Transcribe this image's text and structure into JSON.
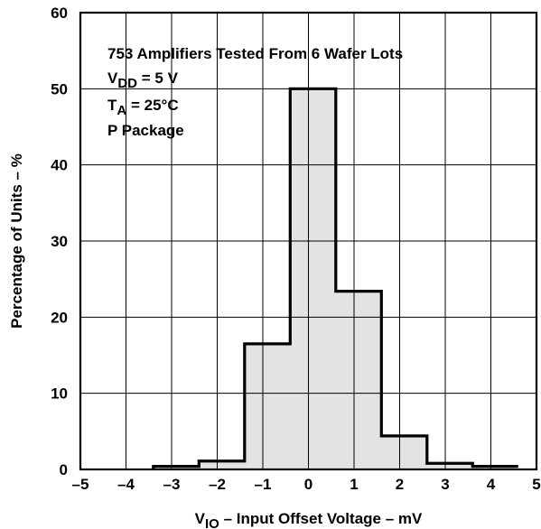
{
  "chart_data": {
    "type": "histogram",
    "title": "",
    "xlabel": {
      "main": "V",
      "sub": "IO",
      "rest": " – Input Offset Voltage – mV"
    },
    "ylabel": "Percentage of Units – %",
    "xlim": [
      -5,
      5
    ],
    "ylim": [
      0,
      60
    ],
    "x_ticks": [
      -5,
      -4,
      -3,
      -2,
      -1,
      0,
      1,
      2,
      3,
      4,
      5
    ],
    "x_tick_labels": [
      "–5",
      "–4",
      "–3",
      "–2",
      "–1",
      "0",
      "1",
      "2",
      "3",
      "4",
      "5"
    ],
    "y_ticks": [
      0,
      10,
      20,
      30,
      40,
      50,
      60
    ],
    "y_tick_labels": [
      "0",
      "10",
      "20",
      "30",
      "40",
      "50",
      "60"
    ],
    "grid": true,
    "bins": [
      {
        "x0": -3.4,
        "x1": -2.4,
        "value": 0.4
      },
      {
        "x0": -2.4,
        "x1": -1.4,
        "value": 1.1
      },
      {
        "x0": -1.4,
        "x1": -0.4,
        "value": 16.5
      },
      {
        "x0": -0.4,
        "x1": 0.6,
        "value": 50.0
      },
      {
        "x0": 0.6,
        "x1": 1.6,
        "value": 23.4
      },
      {
        "x0": 1.6,
        "x1": 2.6,
        "value": 4.4
      },
      {
        "x0": 2.6,
        "x1": 3.6,
        "value": 0.8
      },
      {
        "x0": 3.6,
        "x1": 4.6,
        "value": 0.4
      }
    ],
    "fill_color": "#e3e3e3",
    "line_color": "#000000",
    "annotations": [
      {
        "main": "753 Amplifiers Tested From 6 Wafer Lots",
        "sub": "",
        "rest": ""
      },
      {
        "main": "V",
        "sub": "DD",
        "rest": " = 5 V"
      },
      {
        "main": "T",
        "sub": "A",
        "rest": " = 25°C"
      },
      {
        "main": "P Package",
        "sub": "",
        "rest": ""
      }
    ]
  }
}
